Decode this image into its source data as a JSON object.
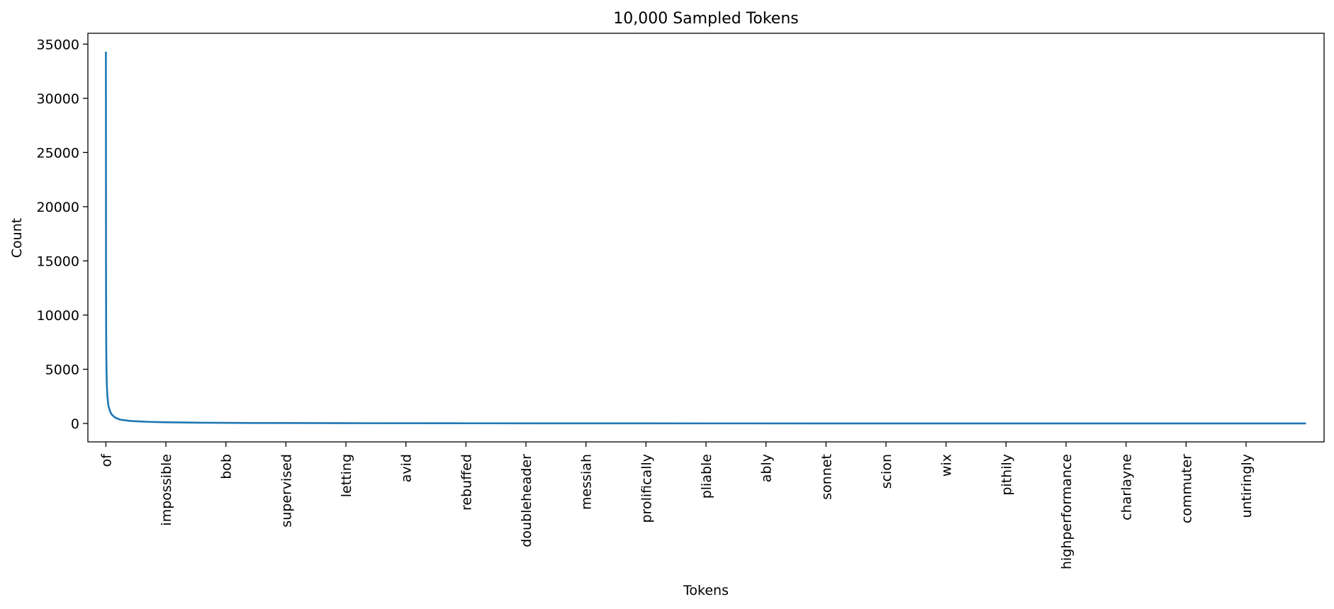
{
  "chart_data": {
    "type": "line",
    "title": "10,000 Sampled Tokens",
    "xlabel": "Tokens",
    "ylabel": "Count",
    "x_range": [
      -150,
      10150
    ],
    "ylim": [
      -1700,
      36000
    ],
    "yticks": [
      0,
      5000,
      10000,
      15000,
      20000,
      25000,
      30000,
      35000
    ],
    "ytick_labels": [
      "0",
      "5000",
      "10000",
      "15000",
      "20000",
      "25000",
      "30000",
      "35000"
    ],
    "xticks": [
      {
        "x": 0,
        "label": "of"
      },
      {
        "x": 500,
        "label": "impossible"
      },
      {
        "x": 1000,
        "label": "bob"
      },
      {
        "x": 1500,
        "label": "supervised"
      },
      {
        "x": 2000,
        "label": "letting"
      },
      {
        "x": 2500,
        "label": "avid"
      },
      {
        "x": 3000,
        "label": "rebuffed"
      },
      {
        "x": 3500,
        "label": "doubleheader"
      },
      {
        "x": 4000,
        "label": "messiah"
      },
      {
        "x": 4500,
        "label": "prolifically"
      },
      {
        "x": 5000,
        "label": "pliable"
      },
      {
        "x": 5500,
        "label": "ably"
      },
      {
        "x": 6000,
        "label": "sonnet"
      },
      {
        "x": 6500,
        "label": "scion"
      },
      {
        "x": 7000,
        "label": "wix"
      },
      {
        "x": 7500,
        "label": "pithily"
      },
      {
        "x": 8000,
        "label": "highperformance"
      },
      {
        "x": 8500,
        "label": "charlayne"
      },
      {
        "x": 9000,
        "label": "commuter"
      },
      {
        "x": 9500,
        "label": "untiringly"
      }
    ],
    "grid": false,
    "legend": "none",
    "series": [
      {
        "color": "#1f77b4",
        "points": [
          [
            0,
            34300
          ],
          [
            1,
            15000
          ],
          [
            2,
            9000
          ],
          [
            3,
            7000
          ],
          [
            5,
            5000
          ],
          [
            8,
            3500
          ],
          [
            12,
            2600
          ],
          [
            20,
            1700
          ],
          [
            35,
            1100
          ],
          [
            50,
            800
          ],
          [
            80,
            520
          ],
          [
            120,
            350
          ],
          [
            200,
            230
          ],
          [
            350,
            150
          ],
          [
            500,
            110
          ],
          [
            800,
            70
          ],
          [
            1200,
            45
          ],
          [
            2000,
            25
          ],
          [
            3000,
            15
          ],
          [
            4000,
            10
          ],
          [
            5000,
            7
          ],
          [
            6000,
            5
          ],
          [
            7000,
            4
          ],
          [
            8000,
            3
          ],
          [
            9000,
            2
          ],
          [
            9999,
            1
          ]
        ]
      }
    ]
  }
}
